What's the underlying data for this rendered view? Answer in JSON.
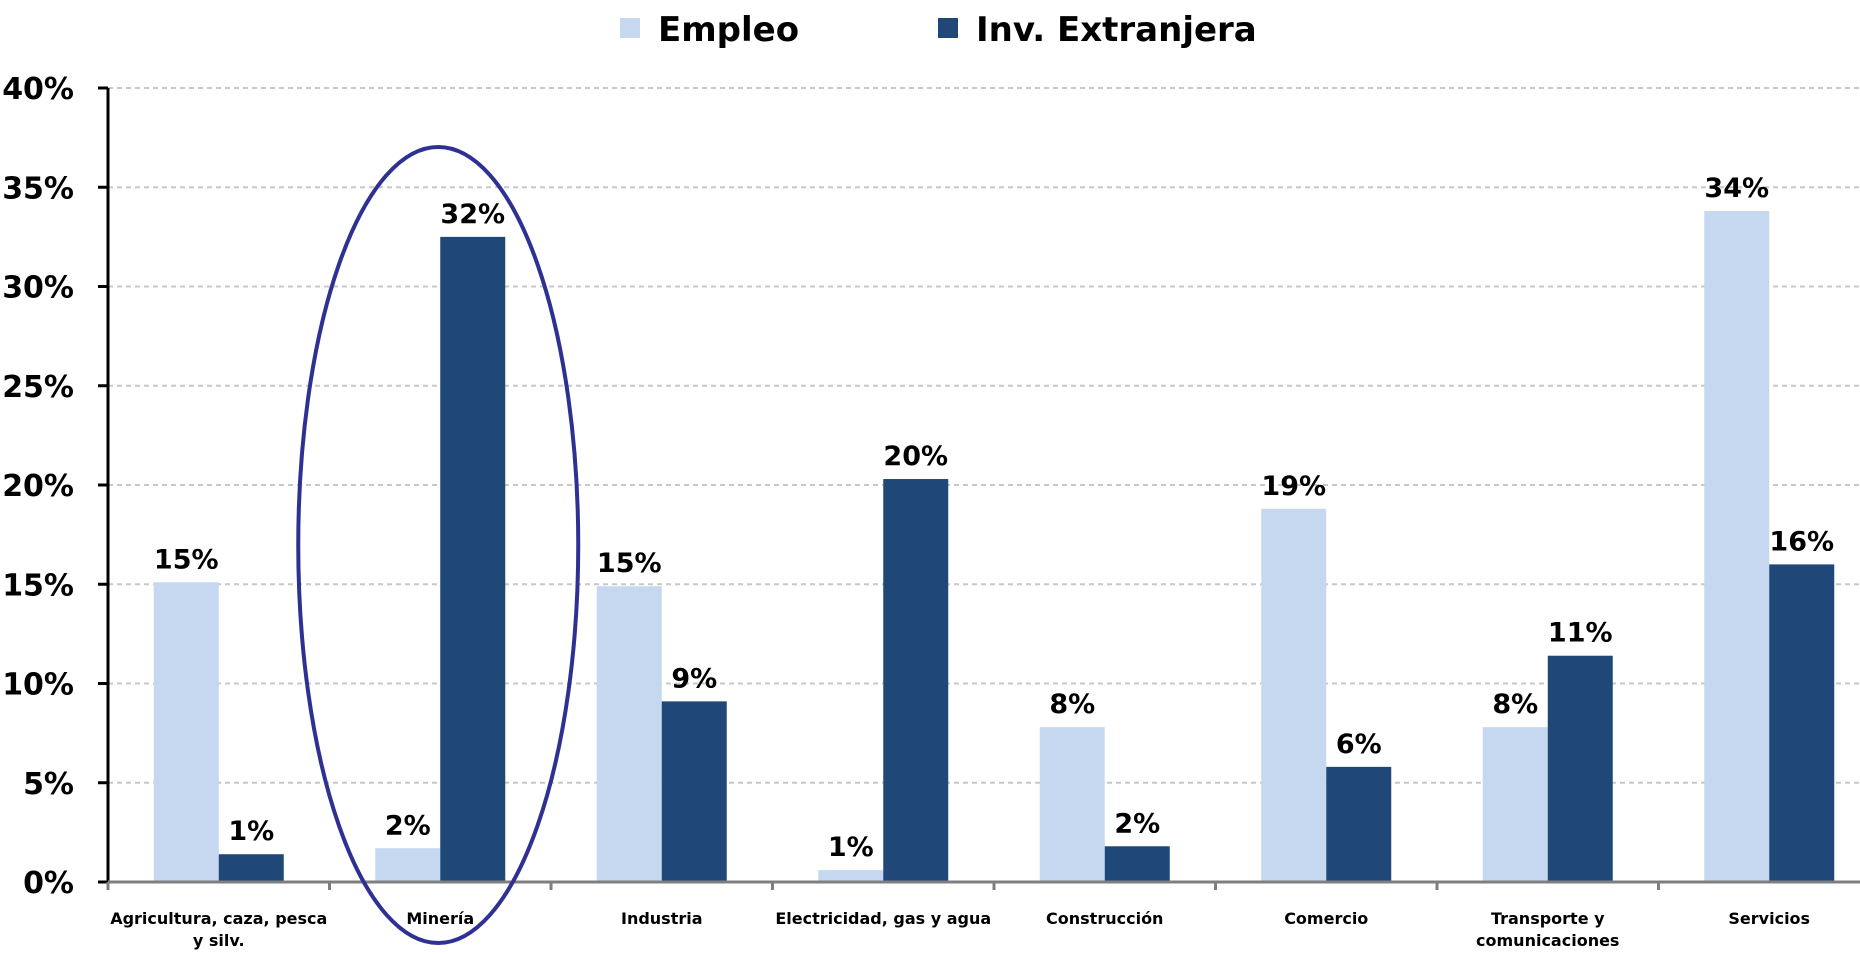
{
  "chart_data": {
    "type": "bar",
    "categories": [
      [
        "Agricultura, caza, pesca",
        "y silv."
      ],
      [
        "Minería"
      ],
      [
        "Industria"
      ],
      [
        "Electricidad, gas y agua"
      ],
      [
        "Construcción"
      ],
      [
        "Comercio"
      ],
      [
        "Transporte y",
        "comunicaciones"
      ],
      [
        "Servicios"
      ]
    ],
    "series": [
      {
        "name": "Empleo",
        "color": "#c6d8f0",
        "values": [
          15.1,
          1.7,
          14.9,
          0.6,
          7.8,
          18.8,
          7.8,
          33.8
        ],
        "labels": [
          "15%",
          "2%",
          "15%",
          "1%",
          "8%",
          "19%",
          "8%",
          "34%"
        ]
      },
      {
        "name": "Inv. Extranjera",
        "color": "#1f4778",
        "values": [
          1.4,
          32.5,
          9.1,
          20.3,
          1.8,
          5.8,
          11.4,
          16.0
        ],
        "labels": [
          "1%",
          "32%",
          "9%",
          "20%",
          "2%",
          "6%",
          "11%",
          "16%"
        ]
      }
    ],
    "yticks": [
      {
        "value": 0,
        "label": "0%"
      },
      {
        "value": 5,
        "label": "5%"
      },
      {
        "value": 10,
        "label": "10%"
      },
      {
        "value": 15,
        "label": "15%"
      },
      {
        "value": 20,
        "label": "20%"
      },
      {
        "value": 25,
        "label": "25%"
      },
      {
        "value": 30,
        "label": "30%"
      },
      {
        "value": 35,
        "label": "35%"
      },
      {
        "value": 40,
        "label": "40%"
      }
    ],
    "ylim": [
      0,
      40
    ],
    "grid": true,
    "legend_position": "top-center",
    "highlight": {
      "category_index": 1,
      "shape": "ellipse",
      "color": "#2e3192"
    },
    "title": "",
    "xlabel": "",
    "ylabel": ""
  }
}
